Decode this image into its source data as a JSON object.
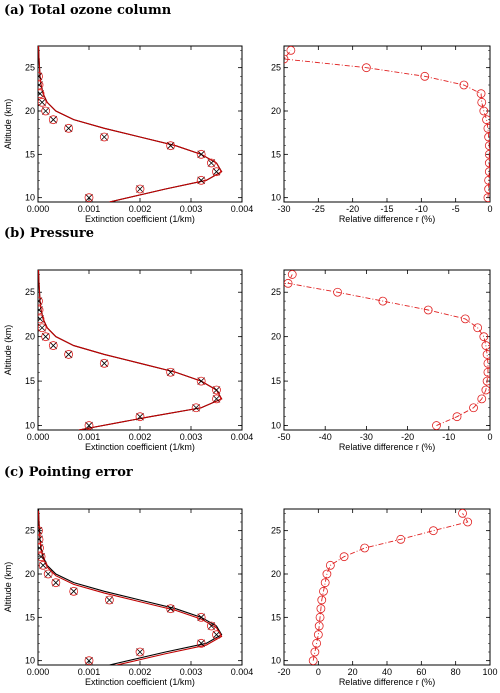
{
  "chart_data": [
    {
      "type": "line",
      "panel": "extinction",
      "row_title": "(a) Total ozone column",
      "xlabel": "Extinction coefficient  (1/km)",
      "ylabel": "Altitude (km)",
      "xlim": [
        0,
        0.004
      ],
      "ylim": [
        9.5,
        27.5
      ],
      "xticks": [
        0,
        0.001,
        0.002,
        0.003,
        0.004
      ],
      "xtick_labels": [
        "0.000",
        "0.001",
        "0.002",
        "0.003",
        "0.004"
      ],
      "yticks": [
        10,
        15,
        20,
        25
      ],
      "ytick_labels": [
        "10",
        "15",
        "20",
        "25"
      ],
      "series": [
        {
          "style": "line",
          "color": "#000000",
          "x": [
            0.0014,
            0.0025,
            0.0033,
            0.0036,
            0.0035,
            0.0032,
            0.0027,
            0.002,
            0.0013,
            0.0007,
            0.00035,
            0.00018,
            0.0001,
            6e-05,
            4e-05,
            3e-05,
            2e-05,
            1e-05
          ],
          "y": [
            9.5,
            11,
            12,
            13,
            14,
            15,
            16,
            17,
            18,
            19,
            20,
            21,
            22,
            23,
            24,
            25,
            26,
            27.5
          ]
        },
        {
          "style": "line",
          "color": "#c00000",
          "x": [
            0.0014,
            0.0025,
            0.0033,
            0.0036,
            0.0035,
            0.0032,
            0.0027,
            0.002,
            0.0013,
            0.0007,
            0.00035,
            0.00018,
            0.0001,
            6e-05,
            4e-05,
            3e-05,
            2e-05,
            1e-05
          ],
          "y": [
            9.5,
            11,
            12,
            13,
            14,
            15,
            16,
            17,
            18,
            19,
            20,
            21,
            22,
            23,
            24,
            25,
            26,
            27.5
          ]
        },
        {
          "style": "cross",
          "color": "#000000",
          "x": [
            0.001,
            0.002,
            0.0032,
            0.0035,
            0.0034,
            0.0032,
            0.0026,
            0.0013,
            0.0006,
            0.0003,
            0.00015,
            8e-05,
            4e-05,
            2e-05,
            1e-05
          ],
          "y": [
            10,
            11,
            12,
            13,
            14,
            15,
            16,
            17,
            18,
            19,
            20,
            21,
            22,
            23,
            24
          ]
        },
        {
          "style": "circle",
          "color": "#e02020",
          "x": [
            0.001,
            0.002,
            0.0032,
            0.0035,
            0.0034,
            0.0032,
            0.0026,
            0.0013,
            0.0006,
            0.0003,
            0.00015,
            8e-05,
            4e-05,
            2e-05,
            1e-05
          ],
          "y": [
            10,
            11,
            12,
            13,
            14,
            15,
            16,
            17,
            18,
            19,
            20,
            21,
            22,
            23,
            24
          ]
        }
      ]
    },
    {
      "type": "line",
      "panel": "reldiff",
      "xlabel": "Relative difference r (%)",
      "ylabel": "",
      "xlim": [
        -30,
        0
      ],
      "ylim": [
        9.5,
        27.5
      ],
      "xticks": [
        -30,
        -25,
        -20,
        -15,
        -10,
        -5,
        0
      ],
      "xtick_labels": [
        "-30",
        "-25",
        "-20",
        "-15",
        "-10",
        "-5",
        "0"
      ],
      "yticks": [
        10,
        15,
        20,
        25
      ],
      "ytick_labels": [
        "10",
        "15",
        "20",
        "25"
      ],
      "series": [
        {
          "style": "dashdot-circle",
          "color": "#e02020",
          "x": [
            -0.3,
            -0.2,
            -0.2,
            -0.1,
            -0.1,
            -0.1,
            -0.1,
            -0.2,
            -0.3,
            -0.5,
            -0.9,
            -1.2,
            -1.3,
            -3.8,
            -9.5,
            -18,
            -30,
            -29
          ],
          "y": [
            10,
            11,
            12,
            13,
            14,
            15,
            16,
            17,
            18,
            19,
            20,
            21,
            22,
            23,
            24,
            25,
            26,
            27
          ]
        }
      ]
    },
    {
      "type": "line",
      "panel": "extinction",
      "row_title": "(b) Pressure",
      "xlabel": "Extinction coefficient  (1/km)",
      "ylabel": "Altitude (km)",
      "xlim": [
        0,
        0.004
      ],
      "ylim": [
        9.5,
        27.5
      ],
      "xticks": [
        0,
        0.001,
        0.002,
        0.003,
        0.004
      ],
      "xtick_labels": [
        "0.000",
        "0.001",
        "0.002",
        "0.003",
        "0.004"
      ],
      "yticks": [
        10,
        15,
        20,
        25
      ],
      "ytick_labels": [
        "10",
        "15",
        "20",
        "25"
      ],
      "series": [
        {
          "style": "line",
          "color": "#000000",
          "x": [
            0.0008,
            0.0022,
            0.0032,
            0.0036,
            0.0035,
            0.0032,
            0.0027,
            0.002,
            0.0013,
            0.0007,
            0.00035,
            0.00018,
            0.0001,
            6e-05,
            4e-05,
            3e-05,
            2e-05,
            1e-05
          ],
          "y": [
            9.5,
            11,
            12,
            13,
            14,
            15,
            16,
            17,
            18,
            19,
            20,
            21,
            22,
            23,
            24,
            25,
            26,
            27.5
          ]
        },
        {
          "style": "line",
          "color": "#c00000",
          "x": [
            0.0008,
            0.0022,
            0.0032,
            0.0036,
            0.0035,
            0.0032,
            0.0027,
            0.002,
            0.0013,
            0.0007,
            0.00035,
            0.00018,
            0.0001,
            6e-05,
            4e-05,
            3e-05,
            2e-05,
            1e-05
          ],
          "y": [
            9.5,
            11,
            12,
            13,
            14,
            15,
            16,
            17,
            18,
            19,
            20,
            21,
            22,
            23,
            24,
            25,
            26,
            27.5
          ]
        },
        {
          "style": "cross",
          "color": "#000000",
          "x": [
            0.001,
            0.002,
            0.0031,
            0.0035,
            0.0035,
            0.0032,
            0.0026,
            0.0013,
            0.0006,
            0.0003,
            0.00015,
            8e-05,
            4e-05,
            2e-05,
            1e-05
          ],
          "y": [
            10,
            11,
            12,
            13,
            14,
            15,
            16,
            17,
            18,
            19,
            20,
            21,
            22,
            23,
            24
          ]
        },
        {
          "style": "circle",
          "color": "#e02020",
          "x": [
            0.001,
            0.002,
            0.0031,
            0.0035,
            0.0035,
            0.0032,
            0.0026,
            0.0013,
            0.0006,
            0.0003,
            0.00015,
            8e-05,
            4e-05,
            2e-05,
            1e-05
          ],
          "y": [
            10,
            11,
            12,
            13,
            14,
            15,
            16,
            17,
            18,
            19,
            20,
            21,
            22,
            23,
            24
          ]
        }
      ]
    },
    {
      "type": "line",
      "panel": "reldiff",
      "xlabel": "Relative difference r (%)",
      "ylabel": "",
      "xlim": [
        -50,
        0
      ],
      "ylim": [
        9.5,
        27.5
      ],
      "xticks": [
        -50,
        -40,
        -30,
        -20,
        -10,
        0
      ],
      "xtick_labels": [
        "-50",
        "-40",
        "-30",
        "-20",
        "-10",
        "0"
      ],
      "yticks": [
        10,
        15,
        20,
        25
      ],
      "ytick_labels": [
        "10",
        "15",
        "20",
        "25"
      ],
      "series": [
        {
          "style": "dashdot-circle",
          "color": "#e02020",
          "x": [
            -13,
            -8,
            -4,
            -2,
            -1,
            -0.7,
            -0.5,
            -0.5,
            -0.7,
            -1,
            -1.5,
            -3,
            -6,
            -15,
            -26,
            -37,
            -49,
            -48
          ],
          "y": [
            10,
            11,
            12,
            13,
            14,
            15,
            16,
            17,
            18,
            19,
            20,
            21,
            22,
            23,
            24,
            25,
            26,
            27
          ]
        }
      ]
    },
    {
      "type": "line",
      "panel": "extinction",
      "row_title": "(c) Pointing error",
      "xlabel": "Extinction coefficient  (1/km)",
      "ylabel": "Altitude (km)",
      "xlim": [
        0,
        0.004
      ],
      "ylim": [
        9.5,
        27.5
      ],
      "xticks": [
        0,
        0.001,
        0.002,
        0.003,
        0.004
      ],
      "xtick_labels": [
        "0.000",
        "0.001",
        "0.002",
        "0.003",
        "0.004"
      ],
      "yticks": [
        10,
        15,
        20,
        25
      ],
      "ytick_labels": [
        "10",
        "15",
        "20",
        "25"
      ],
      "series": [
        {
          "style": "line",
          "color": "#000000",
          "x": [
            0.0014,
            0.0025,
            0.0033,
            0.0036,
            0.0035,
            0.0032,
            0.0027,
            0.002,
            0.0013,
            0.0007,
            0.00035,
            0.00018,
            0.0001,
            6e-05,
            4e-05,
            3e-05,
            2e-05,
            1e-05
          ],
          "y": [
            9.5,
            11,
            12,
            13,
            14,
            15,
            16,
            17,
            18,
            19,
            20,
            21,
            22,
            23,
            24,
            25,
            26,
            27.5
          ]
        },
        {
          "style": "line",
          "color": "#c00000",
          "x": [
            0.0014,
            0.0025,
            0.0033,
            0.0036,
            0.0035,
            0.0032,
            0.0027,
            0.002,
            0.0013,
            0.0007,
            0.00035,
            0.00018,
            0.0001,
            6e-05,
            4e-05,
            3e-05,
            2e-05,
            1e-05
          ],
          "y": [
            9.3,
            10.8,
            11.8,
            12.8,
            13.8,
            14.8,
            15.8,
            16.8,
            17.8,
            18.8,
            19.8,
            20.8,
            21.8,
            22.8,
            23.8,
            24.8,
            25.8,
            27.3
          ]
        },
        {
          "style": "cross",
          "color": "#000000",
          "x": [
            0.001,
            0.002,
            0.0032,
            0.0035,
            0.0034,
            0.0032,
            0.0026,
            0.0014,
            0.0007,
            0.00035,
            0.0002,
            0.0001,
            6e-05,
            3e-05,
            2e-05,
            1e-05
          ],
          "y": [
            10,
            11,
            12,
            13,
            14,
            15,
            16,
            17,
            18,
            19,
            20,
            21,
            22,
            23,
            24,
            25
          ]
        },
        {
          "style": "circle",
          "color": "#e02020",
          "x": [
            0.001,
            0.002,
            0.0032,
            0.0035,
            0.0034,
            0.0032,
            0.0026,
            0.0014,
            0.0007,
            0.00035,
            0.0002,
            0.0001,
            6e-05,
            3e-05,
            2e-05,
            1e-05
          ],
          "y": [
            10,
            11,
            12,
            13,
            14,
            15,
            16,
            17,
            18,
            19,
            20,
            21,
            22,
            23,
            24,
            25
          ]
        }
      ]
    },
    {
      "type": "line",
      "panel": "reldiff",
      "xlabel": "Relative difference r (%)",
      "ylabel": "",
      "xlim": [
        -20,
        100
      ],
      "ylim": [
        9.5,
        27.5
      ],
      "xticks": [
        -20,
        0,
        20,
        40,
        60,
        80,
        100
      ],
      "xtick_labels": [
        "-20",
        "0",
        "20",
        "40",
        "60",
        "80",
        "100"
      ],
      "yticks": [
        10,
        15,
        20,
        25
      ],
      "ytick_labels": [
        "10",
        "15",
        "20",
        "25"
      ],
      "series": [
        {
          "style": "dashdot-circle",
          "color": "#e02020",
          "x": [
            -3,
            -2,
            -1,
            0,
            0.5,
            1,
            1.5,
            2,
            3,
            4,
            5,
            7,
            15,
            27,
            48,
            67,
            87,
            84
          ],
          "y": [
            10,
            11,
            12,
            13,
            14,
            15,
            16,
            17,
            18,
            19,
            20,
            21,
            22,
            23,
            24,
            25,
            26,
            27
          ]
        }
      ]
    }
  ]
}
